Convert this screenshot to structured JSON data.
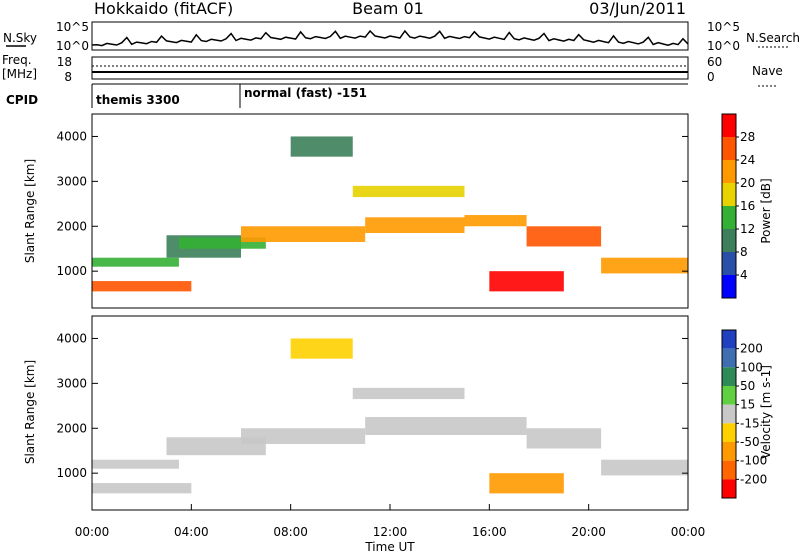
{
  "header": {
    "station": "Hokkaido (fitACF)",
    "beam": "Beam 01",
    "date": "03/Jun/2011"
  },
  "strip": {
    "nsky_label": "N.Sky",
    "nsky_ticks": [
      "10^5",
      "10^0"
    ],
    "nsearch_label": "N.Search",
    "freq_label": "Freq.",
    "freq_unit": "[MHz]",
    "freq_ticks": [
      "18",
      "8"
    ],
    "nave_label": "Nave",
    "nave_ticks": [
      "60",
      "0"
    ],
    "cpid_label": "CPID",
    "cpid_entries": [
      {
        "label": "themis 3300",
        "start_hour": 0
      },
      {
        "label": "normal (fast) -151",
        "start_hour": 6
      }
    ]
  },
  "colors": {
    "power_scale": [
      "#0000ff",
      "#2a4fa8",
      "#3c7f5a",
      "#34b034",
      "#e8d200",
      "#ff9900",
      "#ff5500",
      "#ff0000"
    ],
    "velocity_scale": [
      "#2040c0",
      "#3f6fb0",
      "#2e8b57",
      "#60d040",
      "#c8c8c8",
      "#ffd000",
      "#ff9900",
      "#ff6600",
      "#ff0000"
    ]
  },
  "chart_data": [
    {
      "type": "heatmap",
      "panel": "power",
      "ylabel": "Slant Range [km]",
      "yticks": [
        "4000",
        "3000",
        "2000",
        "1000"
      ],
      "ylim": [
        180,
        4500
      ],
      "xlim": [
        0,
        24
      ],
      "colorbar_label": "Power [dB]",
      "colorbar_ticks": [
        "28",
        "24",
        "20",
        "16",
        "12",
        "8",
        "4"
      ],
      "colorbar_range": [
        0,
        32
      ],
      "bands": [
        {
          "x": [
            0,
            3.5
          ],
          "y": [
            1100,
            1300
          ],
          "level": 12
        },
        {
          "x": [
            0,
            4
          ],
          "y": [
            550,
            780
          ],
          "level": 24
        },
        {
          "x": [
            3,
            6
          ],
          "y": [
            1300,
            1800
          ],
          "level": 8
        },
        {
          "x": [
            3.5,
            7
          ],
          "y": [
            1500,
            1750
          ],
          "level": 14
        },
        {
          "x": [
            6,
            11
          ],
          "y": [
            1650,
            2000
          ],
          "level": 22
        },
        {
          "x": [
            11,
            15
          ],
          "y": [
            1850,
            2200
          ],
          "level": 20
        },
        {
          "x": [
            15,
            17.5
          ],
          "y": [
            2000,
            2250
          ],
          "level": 22
        },
        {
          "x": [
            17.5,
            20.5
          ],
          "y": [
            1550,
            2000
          ],
          "level": 24
        },
        {
          "x": [
            20.5,
            24
          ],
          "y": [
            950,
            1300
          ],
          "level": 20
        },
        {
          "x": [
            16,
            19
          ],
          "y": [
            550,
            1000
          ],
          "level": 28
        },
        {
          "x": [
            8,
            10.5
          ],
          "y": [
            3550,
            4000
          ],
          "level": 8
        },
        {
          "x": [
            10.5,
            15
          ],
          "y": [
            2650,
            2900
          ],
          "level": 16
        }
      ]
    },
    {
      "type": "heatmap",
      "panel": "velocity",
      "ylabel": "Slant Range [km]",
      "yticks": [
        "4000",
        "3000",
        "2000",
        "1000"
      ],
      "ylim": [
        180,
        4500
      ],
      "xlim": [
        0,
        24
      ],
      "xlabel": "Time UT",
      "xticks": [
        "00:00",
        "04:00",
        "08:00",
        "12:00",
        "16:00",
        "20:00",
        "00:00"
      ],
      "colorbar_label": "Velocity [m s-1]",
      "colorbar_ticks": [
        "200",
        "100",
        "50",
        "15",
        "-15",
        "-50",
        "-100",
        "-200"
      ],
      "bands": [
        {
          "x": [
            0,
            3.5
          ],
          "y": [
            1100,
            1300
          ],
          "velocity": 0
        },
        {
          "x": [
            0,
            4
          ],
          "y": [
            550,
            780
          ],
          "velocity": 0
        },
        {
          "x": [
            3,
            7
          ],
          "y": [
            1400,
            1800
          ],
          "velocity": 0
        },
        {
          "x": [
            6,
            11
          ],
          "y": [
            1650,
            2000
          ],
          "velocity": -10
        },
        {
          "x": [
            11,
            17.5
          ],
          "y": [
            1850,
            2250
          ],
          "velocity": 0
        },
        {
          "x": [
            17.5,
            20.5
          ],
          "y": [
            1550,
            2000
          ],
          "velocity": 5
        },
        {
          "x": [
            20.5,
            24
          ],
          "y": [
            950,
            1300
          ],
          "velocity": 0
        },
        {
          "x": [
            16,
            19
          ],
          "y": [
            550,
            1000
          ],
          "velocity": -60
        },
        {
          "x": [
            8,
            10.5
          ],
          "y": [
            3550,
            4000
          ],
          "velocity": -20
        },
        {
          "x": [
            10.5,
            15
          ],
          "y": [
            2650,
            2900
          ],
          "velocity": 0
        }
      ]
    }
  ]
}
